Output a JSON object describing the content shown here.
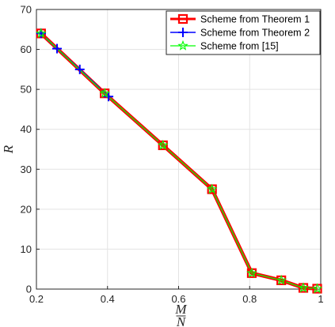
{
  "chart_data": {
    "type": "line",
    "title": "",
    "xlabel_num": "M",
    "xlabel_den": "N",
    "ylabel": "R",
    "xlim": [
      0.2,
      1.0
    ],
    "ylim": [
      0,
      70
    ],
    "xticks": [
      0.2,
      0.4,
      0.6,
      0.8,
      1
    ],
    "xtick_labels": [
      "0.2",
      "0.4",
      "0.6",
      "0.8",
      "1"
    ],
    "yticks": [
      0,
      10,
      20,
      30,
      40,
      50,
      60,
      70
    ],
    "ytick_labels": [
      "0",
      "10",
      "20",
      "30",
      "40",
      "50",
      "60",
      "70"
    ],
    "grid": true,
    "legend_position": "top-right",
    "series": [
      {
        "name": "Scheme from Theorem 1",
        "color": "#ff0000",
        "marker": "square",
        "x": [
          0.213,
          0.392,
          0.556,
          0.694,
          0.806,
          0.889,
          0.951,
          0.99
        ],
        "y": [
          64,
          49,
          36,
          25,
          4,
          2.2,
          0.3,
          0.1
        ]
      },
      {
        "name": "Scheme from Theorem 2",
        "color": "#0000ff",
        "marker": "plus",
        "x": [
          0.213,
          0.258,
          0.322,
          0.403
        ],
        "y": [
          64,
          60.2,
          55,
          48.2
        ]
      },
      {
        "name": "Scheme from [15]",
        "color": "#00ff00",
        "marker": "star",
        "x": [
          0.213,
          0.392,
          0.556,
          0.694,
          0.806,
          0.889,
          0.951,
          0.99
        ],
        "y": [
          64,
          49,
          36,
          25,
          4,
          2.2,
          0.3,
          0.1
        ]
      }
    ]
  },
  "legend": {
    "items": [
      {
        "label": "Scheme from Theorem 1"
      },
      {
        "label": "Scheme from Theorem 2"
      },
      {
        "label": "Scheme from [15]"
      }
    ]
  }
}
